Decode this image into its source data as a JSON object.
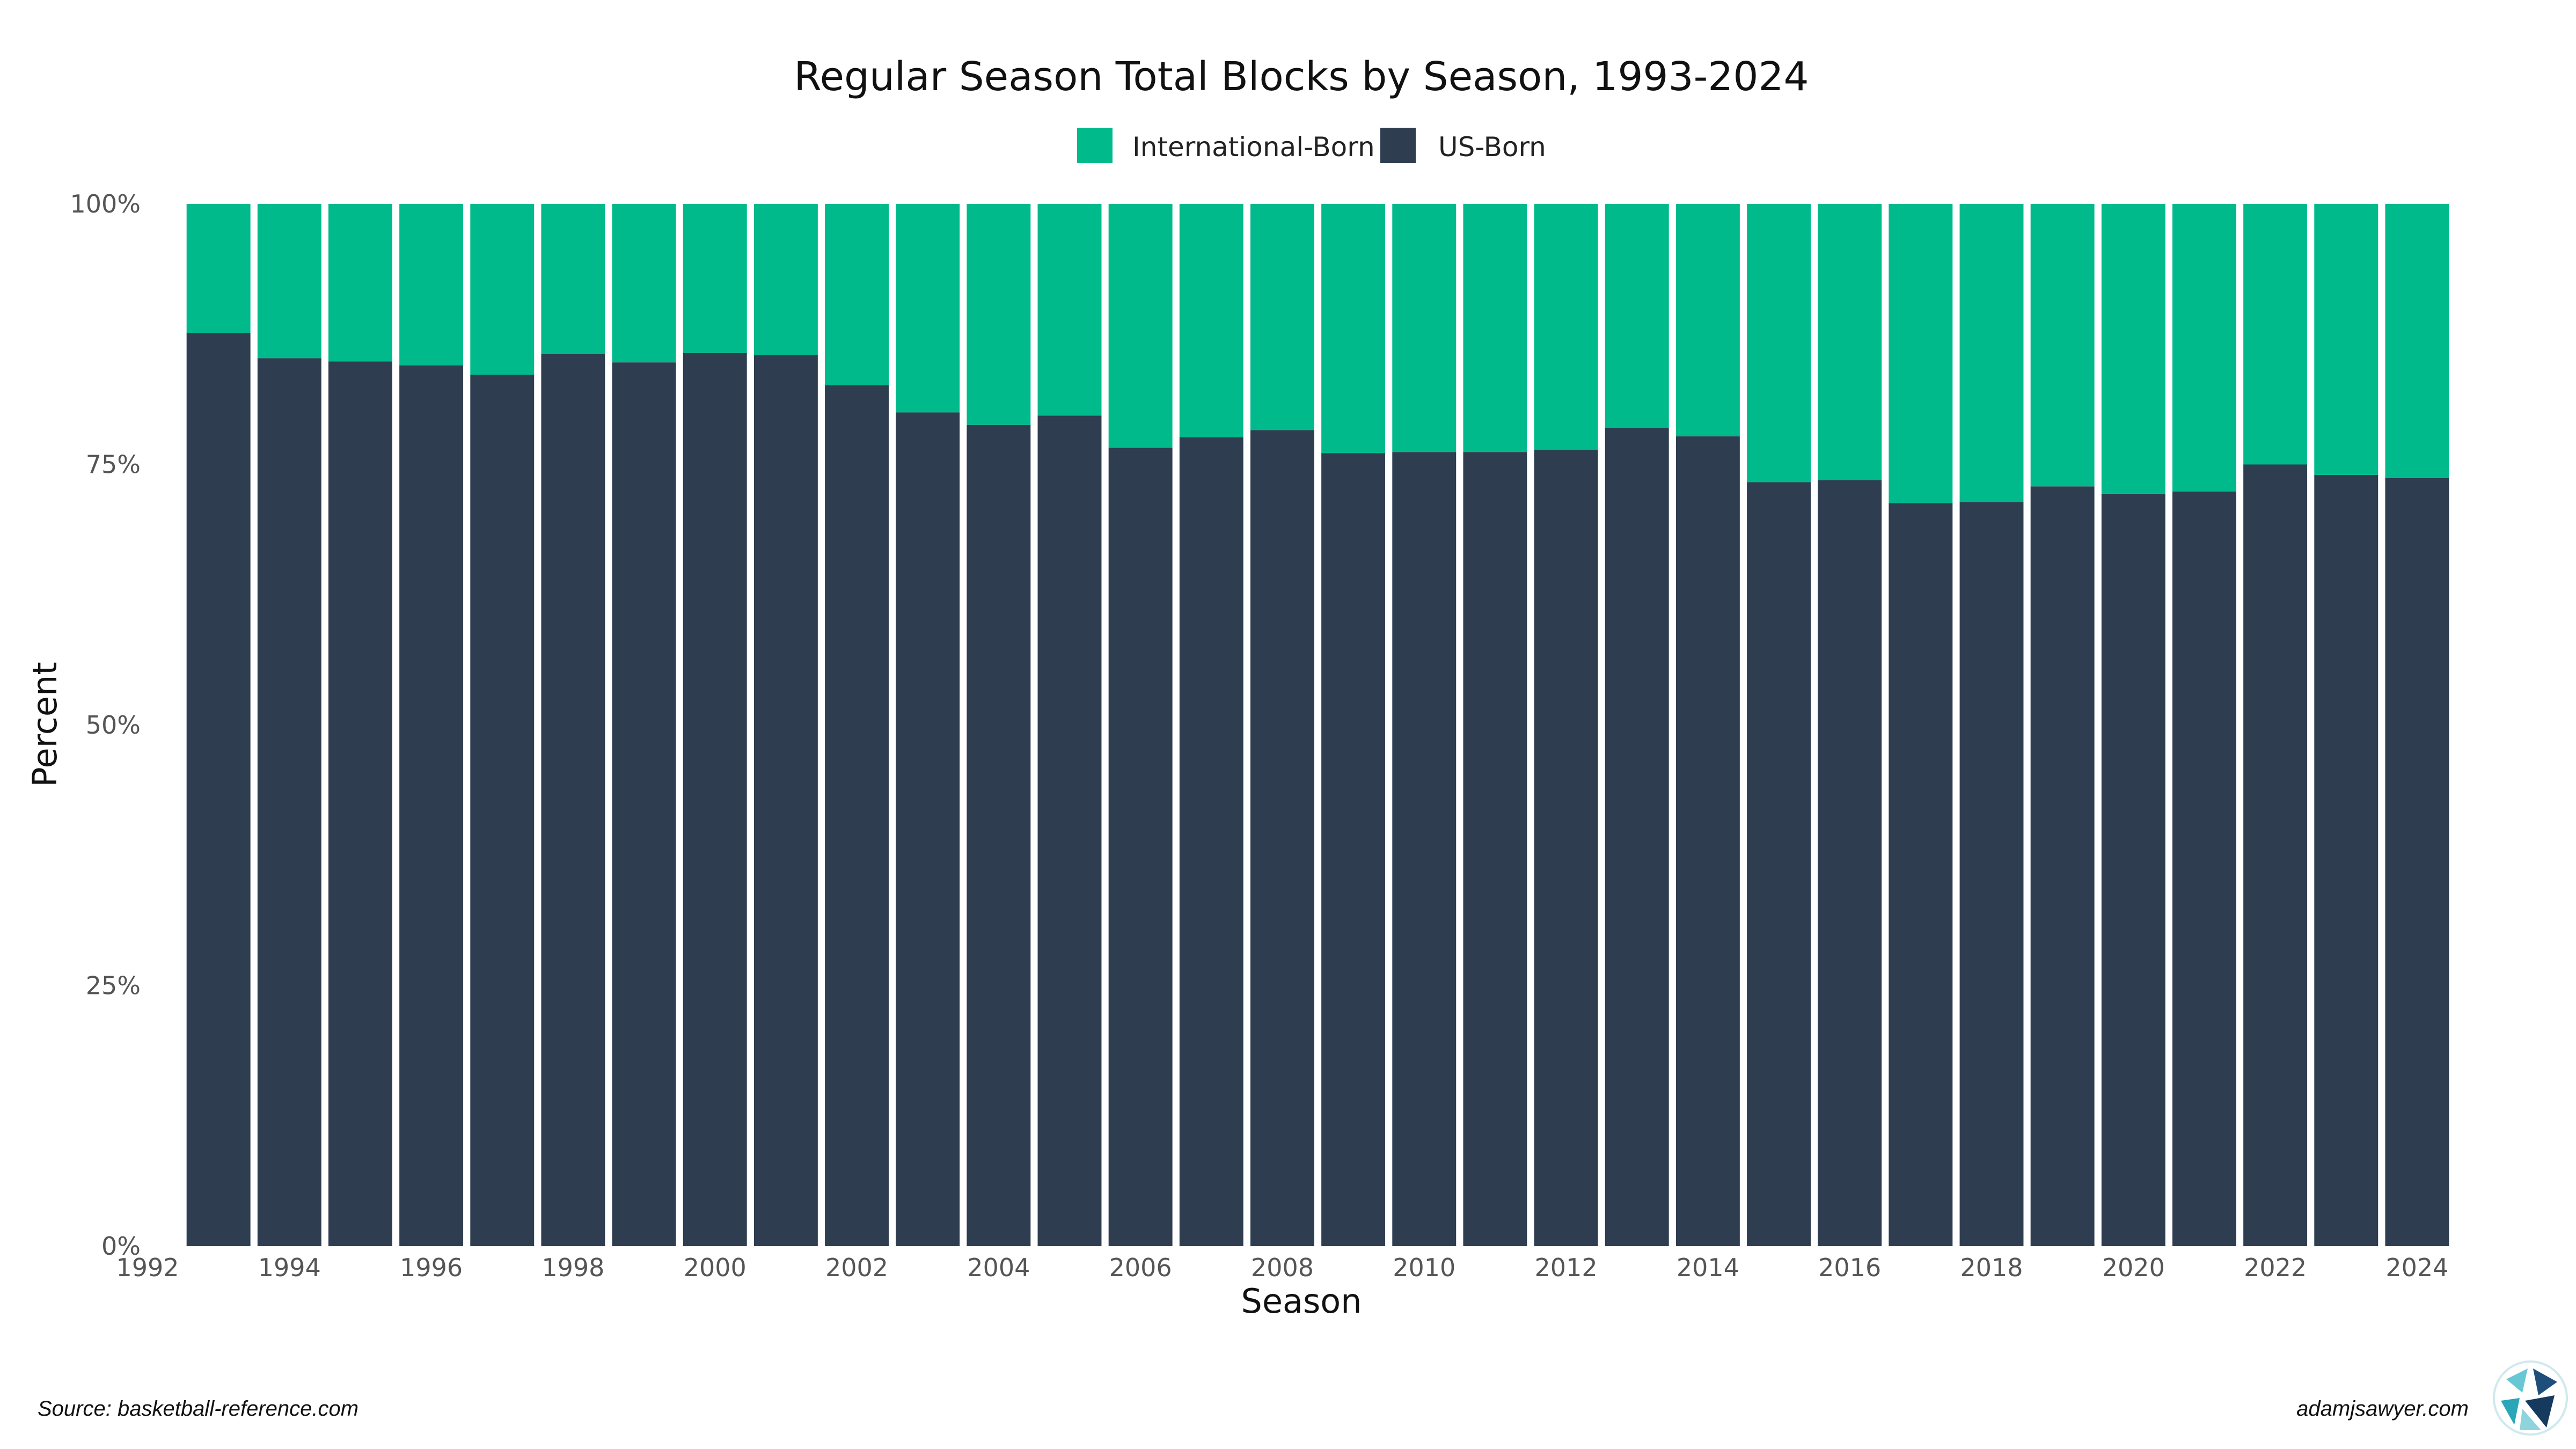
{
  "chart_data": {
    "type": "bar",
    "stacked": true,
    "normalized": true,
    "title": "Regular Season Total Blocks by Season, 1993-2024",
    "xlabel": "Season",
    "ylabel": "Percent",
    "x_tick_labels": [
      "1992",
      "1994",
      "1996",
      "1998",
      "2000",
      "2002",
      "2004",
      "2006",
      "2008",
      "2010",
      "2012",
      "2014",
      "2016",
      "2018",
      "2020",
      "2022",
      "2024"
    ],
    "x_range": [
      1992,
      2024.5
    ],
    "y_tick_labels": [
      "0%",
      "25%",
      "50%",
      "75%",
      "100%"
    ],
    "ylim": [
      0,
      100
    ],
    "legend_position": "top",
    "categories": [
      1993,
      1994,
      1995,
      1996,
      1997,
      1998,
      1999,
      2000,
      2001,
      2002,
      2003,
      2004,
      2005,
      2006,
      2007,
      2008,
      2009,
      2010,
      2011,
      2012,
      2013,
      2014,
      2015,
      2016,
      2017,
      2018,
      2019,
      2020,
      2021,
      2022,
      2023,
      2024
    ],
    "series": [
      {
        "name": "US-Born",
        "color": "#2e3d50",
        "values": [
          87.6,
          85.2,
          84.9,
          84.5,
          83.6,
          85.6,
          84.8,
          85.7,
          85.5,
          82.6,
          80.0,
          78.8,
          79.7,
          76.6,
          77.6,
          78.3,
          76.1,
          76.2,
          76.2,
          76.4,
          78.5,
          77.7,
          73.3,
          73.5,
          71.3,
          71.4,
          72.9,
          72.2,
          72.4,
          75.0,
          74.0,
          73.7
        ]
      },
      {
        "name": "International-Born",
        "color": "#00ba8c",
        "values": [
          12.4,
          14.8,
          15.1,
          15.5,
          16.4,
          14.4,
          15.2,
          14.3,
          14.5,
          17.4,
          20.0,
          21.2,
          20.3,
          23.4,
          22.4,
          21.7,
          23.9,
          23.8,
          23.8,
          23.6,
          21.5,
          22.3,
          26.7,
          26.5,
          28.7,
          28.6,
          27.1,
          27.8,
          27.6,
          25.0,
          26.0,
          26.3
        ]
      }
    ]
  },
  "legend": {
    "items": [
      "International-Born",
      "US-Born"
    ]
  },
  "footer": {
    "source": "Source: basketball-reference.com",
    "site": "adamjsawyer.com"
  },
  "logo": {
    "icon": "adamjsawyer-logo-icon"
  }
}
